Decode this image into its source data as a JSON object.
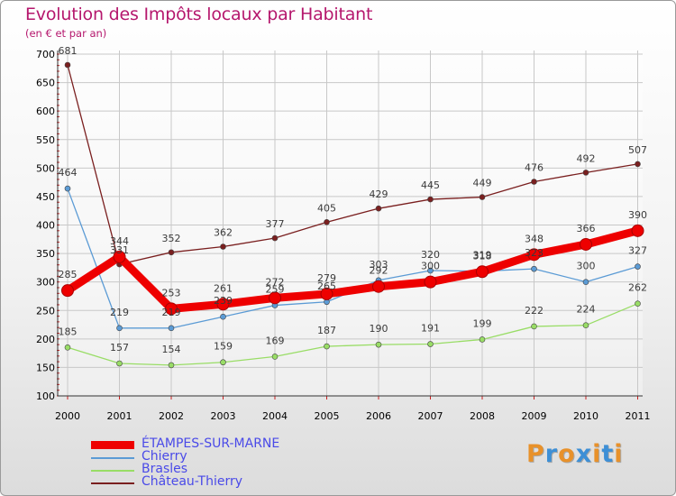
{
  "chart_data": {
    "type": "line",
    "title": "Evolution des Impôts locaux par Habitant",
    "subtitle": "(en € et par an)",
    "xlabel": "",
    "ylabel": "",
    "x": [
      "2000",
      "2001",
      "2002",
      "2003",
      "2004",
      "2005",
      "2006",
      "2007",
      "2008",
      "2009",
      "2010",
      "2011"
    ],
    "ylim": [
      100,
      700
    ],
    "yticks": [
      100,
      150,
      200,
      250,
      300,
      350,
      400,
      450,
      500,
      550,
      600,
      650,
      700
    ],
    "series": [
      {
        "name": "ÉTAMPES-SUR-MARNE",
        "color": "#ee0000",
        "values": [
          285,
          344,
          253,
          261,
          272,
          279,
          292,
          300,
          318,
          348,
          366,
          390
        ]
      },
      {
        "name": "Chierry",
        "color": "#5b9bd5",
        "values": [
          464,
          219,
          219,
          239,
          259,
          265,
          303,
          320,
          319,
          323,
          300,
          327
        ]
      },
      {
        "name": "Brasles",
        "color": "#99dd66",
        "values": [
          185,
          157,
          154,
          159,
          169,
          187,
          190,
          191,
          199,
          222,
          224,
          262
        ]
      },
      {
        "name": "Château-Thierry",
        "color": "#7a1f1f",
        "values": [
          681,
          331,
          352,
          362,
          377,
          405,
          429,
          445,
          449,
          476,
          492,
          507
        ]
      }
    ]
  },
  "logo": {
    "letters": [
      "P",
      "r",
      "o",
      "x",
      "i",
      "t",
      "i"
    ],
    "colors": [
      "#e8912a",
      "#3d8fd6",
      "#e8912a",
      "#3d8fd6",
      "#e8912a",
      "#3d8fd6",
      "#e8912a"
    ]
  }
}
